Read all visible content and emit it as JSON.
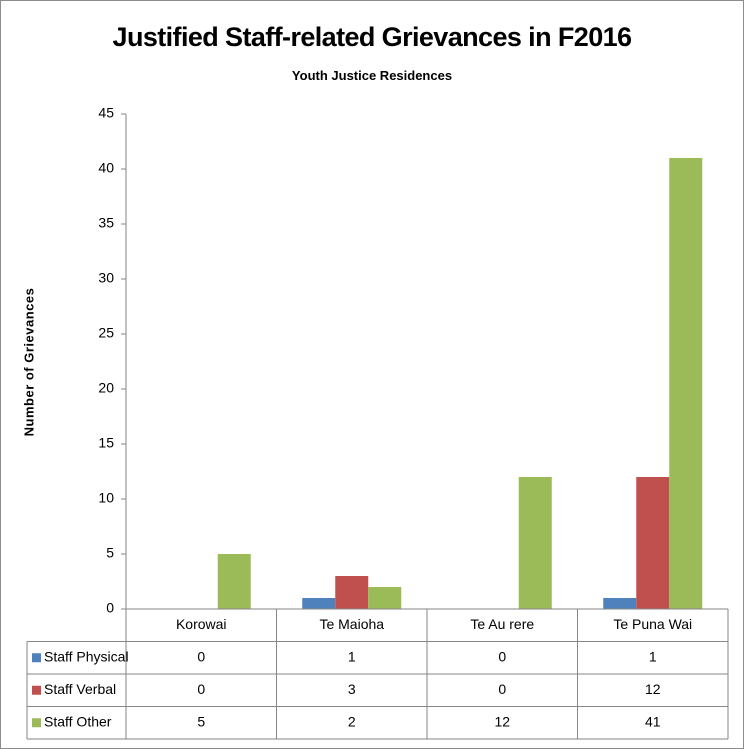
{
  "chart_data": {
    "type": "bar",
    "title": "Justified Staff-related Grievances in F2016",
    "subtitle": "Youth Justice Residences",
    "xlabel": "",
    "ylabel": "Number of Grievances",
    "ylim": [
      0,
      45
    ],
    "yticks": [
      0,
      5,
      10,
      15,
      20,
      25,
      30,
      35,
      40,
      45
    ],
    "categories": [
      "Korowai",
      "Te Maioha",
      "Te Au rere",
      "Te Puna Wai"
    ],
    "series": [
      {
        "name": "Staff Physical",
        "color": "#4f81bd",
        "values": [
          0,
          1,
          0,
          1
        ]
      },
      {
        "name": "Staff Verbal",
        "color": "#c0504d",
        "values": [
          0,
          3,
          0,
          12
        ]
      },
      {
        "name": "Staff Other",
        "color": "#9bbb59",
        "values": [
          5,
          2,
          12,
          41
        ]
      }
    ],
    "grid": false,
    "legend": "data-table",
    "data_table": true
  }
}
